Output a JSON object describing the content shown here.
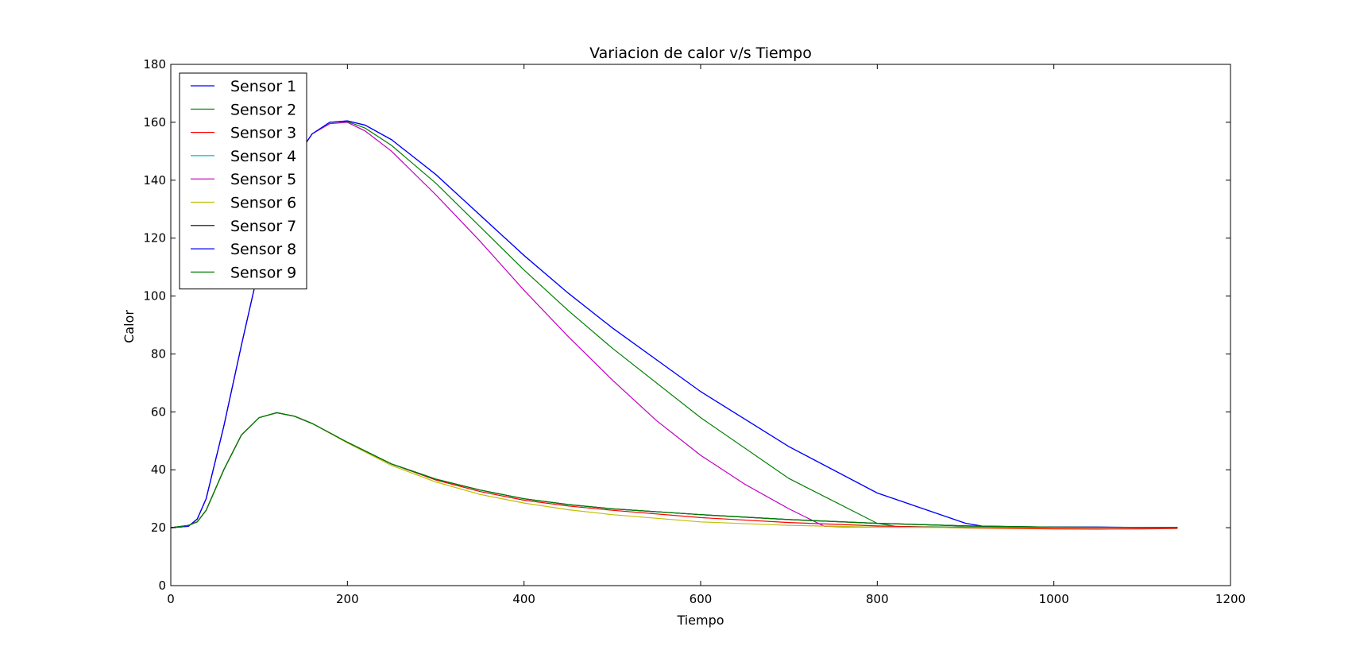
{
  "chart_data": {
    "type": "line",
    "title": "Variacion de calor v/s Tiempo",
    "xlabel": "Tiempo",
    "ylabel": "Calor",
    "xlim": [
      0,
      1200
    ],
    "ylim": [
      0,
      180
    ],
    "xticks": [
      0,
      200,
      400,
      600,
      800,
      1000,
      1200
    ],
    "yticks": [
      0,
      20,
      40,
      60,
      80,
      100,
      120,
      140,
      160,
      180
    ],
    "grid": false,
    "legend_position": "top-left",
    "series": [
      {
        "name": "Sensor 1",
        "color": "#0000ff",
        "x": [
          0,
          20,
          30,
          40,
          60,
          80,
          100,
          120,
          140,
          160,
          180,
          200,
          220,
          250,
          300,
          350,
          400,
          450,
          500,
          600,
          700,
          800,
          900,
          920,
          950,
          1000,
          1050,
          1100,
          1140
        ],
        "y": [
          20,
          20.5,
          23,
          30,
          55,
          83,
          110,
          132,
          147,
          156,
          160,
          160.5,
          159,
          154,
          142,
          128,
          114,
          101,
          89,
          67,
          48,
          32,
          21.5,
          20.5,
          20.3,
          20.2,
          20.2,
          20.1,
          20.1
        ]
      },
      {
        "name": "Sensor 2",
        "color": "#008000",
        "x": [
          0,
          20,
          30,
          40,
          60,
          80,
          100,
          120,
          140,
          160,
          180,
          200,
          220,
          250,
          300,
          350,
          400,
          450,
          500,
          600,
          700,
          800,
          820,
          850,
          900,
          1000,
          1100,
          1140
        ],
        "y": [
          20,
          20.5,
          23,
          30,
          55,
          83,
          110,
          132,
          147,
          156,
          160,
          160.3,
          158,
          152,
          139,
          124,
          109,
          95,
          82,
          58,
          37,
          21.5,
          20.5,
          20.3,
          20.2,
          20.1,
          20.1,
          20.1
        ]
      },
      {
        "name": "Sensor 3",
        "color": "#ff0000",
        "x": [
          0,
          20,
          30,
          40,
          60,
          80,
          100,
          120,
          140,
          160,
          200,
          250,
          300,
          350,
          400,
          450,
          500,
          600,
          700,
          800,
          900,
          1000,
          1050,
          1100,
          1140
        ],
        "y": [
          20,
          20.8,
          22,
          26,
          40,
          52,
          58,
          59.7,
          58.5,
          56,
          49.5,
          42,
          36.5,
          32.5,
          29.5,
          27.5,
          26,
          23.5,
          21.8,
          20.6,
          19.9,
          19.6,
          19.5,
          19.6,
          19.7
        ]
      },
      {
        "name": "Sensor 4",
        "color": "#00bfbf",
        "x": [
          0,
          20,
          30,
          40,
          60,
          80,
          100,
          120,
          140,
          160,
          200,
          250,
          300,
          350,
          400,
          450,
          500,
          600,
          700,
          800,
          900,
          1000,
          1100,
          1140
        ],
        "y": [
          20,
          20.8,
          22,
          26,
          40,
          52,
          58,
          59.7,
          58.5,
          56,
          49.5,
          42,
          36.8,
          33,
          30,
          28,
          26.5,
          24.5,
          22.8,
          21.5,
          20.6,
          20.2,
          20.1,
          20.1
        ]
      },
      {
        "name": "Sensor 5",
        "color": "#bf00bf",
        "x": [
          0,
          20,
          30,
          40,
          60,
          80,
          100,
          120,
          140,
          160,
          180,
          200,
          220,
          250,
          300,
          350,
          400,
          450,
          500,
          550,
          600,
          650,
          700,
          740,
          760,
          800,
          900,
          1000,
          1100,
          1140
        ],
        "y": [
          20,
          20.5,
          23,
          30,
          55,
          83,
          110,
          132,
          147,
          156,
          159.5,
          160,
          157,
          150,
          135,
          119,
          102,
          86,
          71,
          57,
          45,
          35,
          26.5,
          20.5,
          20.3,
          20.2,
          20.1,
          20.1,
          20.1,
          20.1
        ]
      },
      {
        "name": "Sensor 6",
        "color": "#bfbf00",
        "x": [
          0,
          20,
          30,
          40,
          60,
          80,
          100,
          120,
          140,
          160,
          200,
          250,
          300,
          350,
          400,
          450,
          500,
          600,
          700,
          800,
          900,
          1000,
          1100,
          1140
        ],
        "y": [
          20,
          20.8,
          22,
          26,
          40,
          52,
          58,
          59.7,
          58.5,
          56,
          49.3,
          41.5,
          35.8,
          31.5,
          28.5,
          26.2,
          24.5,
          22,
          20.8,
          20.2,
          20,
          20,
          20,
          20
        ]
      },
      {
        "name": "Sensor 7",
        "color": "#000000",
        "x": [
          0,
          20,
          30,
          40,
          60,
          80,
          100,
          120,
          140,
          160,
          200,
          250,
          300,
          350,
          400,
          450,
          500,
          600,
          700,
          800,
          900,
          1000,
          1100,
          1140
        ],
        "y": [
          20,
          20.8,
          22,
          26,
          40,
          52,
          58,
          59.7,
          58.5,
          56,
          49.5,
          42,
          36.8,
          33,
          30,
          28,
          26.5,
          24.5,
          22.8,
          21.5,
          20.6,
          20.2,
          20.1,
          20.1
        ]
      },
      {
        "name": "Sensor 8",
        "color": "#0000ff",
        "x": [
          0,
          20,
          30,
          40,
          60,
          80,
          100,
          120,
          140,
          160,
          180,
          200,
          220,
          250,
          300,
          350,
          400,
          450,
          500,
          600,
          700,
          800,
          900,
          920,
          950,
          1000,
          1050,
          1100,
          1140
        ],
        "y": [
          20,
          20.5,
          23,
          30,
          55,
          83,
          110,
          132,
          147,
          156,
          160,
          160.5,
          159,
          154,
          142,
          128,
          114,
          101,
          89,
          67,
          48,
          32,
          21.5,
          20.5,
          20.3,
          20.2,
          20.2,
          20.1,
          20.1
        ]
      },
      {
        "name": "Sensor 9",
        "color": "#008000",
        "x": [
          0,
          20,
          30,
          40,
          60,
          80,
          100,
          120,
          140,
          160,
          200,
          250,
          300,
          350,
          400,
          450,
          500,
          600,
          700,
          800,
          900,
          1000,
          1100,
          1140
        ],
        "y": [
          20,
          20.8,
          22,
          26,
          40,
          52,
          58,
          59.7,
          58.5,
          56,
          49.5,
          42,
          36.8,
          33,
          30,
          28,
          26.5,
          24.5,
          22.8,
          21.5,
          20.6,
          20.2,
          20.1,
          20.1
        ]
      }
    ]
  }
}
